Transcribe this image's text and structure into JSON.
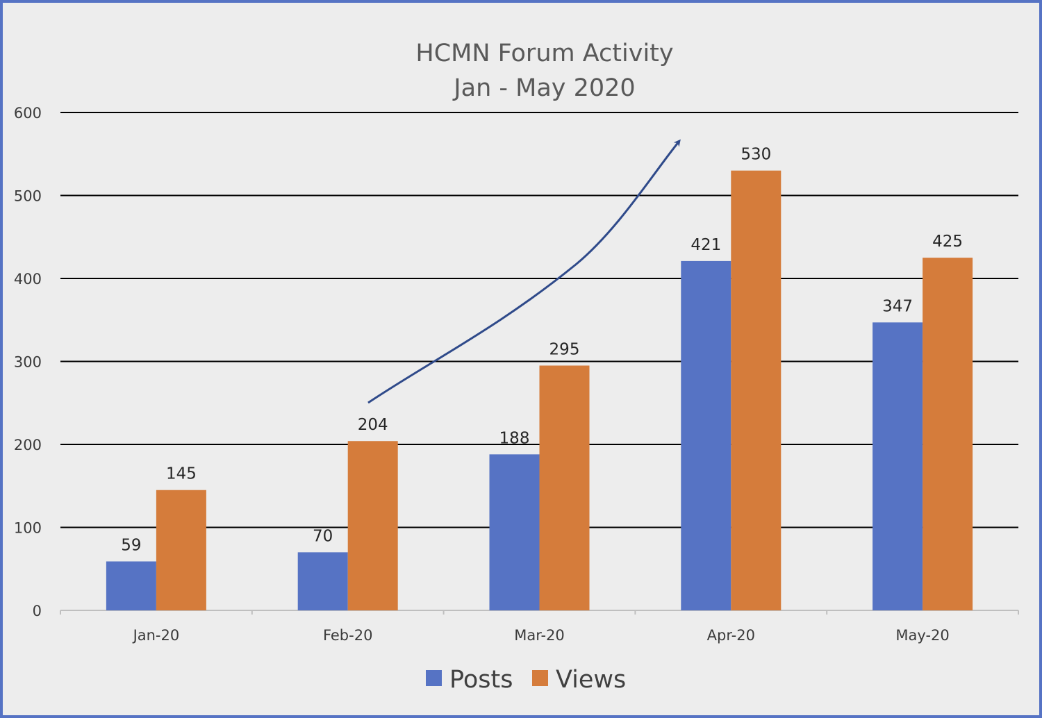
{
  "chart_data": {
    "type": "bar",
    "title": "HCMN Forum Activity",
    "subtitle": "Jan - May 2020",
    "categories": [
      "Jan-20",
      "Feb-20",
      "Mar-20",
      "Apr-20",
      "May-20"
    ],
    "series": [
      {
        "name": "Posts",
        "values": [
          59,
          70,
          188,
          421,
          347
        ],
        "color": "#5673c4"
      },
      {
        "name": "Views",
        "values": [
          145,
          204,
          295,
          530,
          425
        ],
        "color": "#d57c3b"
      }
    ],
    "yticks": [
      "0",
      "100",
      "200",
      "300",
      "400",
      "500",
      "600"
    ],
    "ylim": [
      0,
      600
    ],
    "xlabel": "",
    "ylabel": "",
    "grid": true,
    "legend_position": "bottom",
    "annotation": {
      "type": "trend-arrow",
      "color": "#2f4a8a"
    },
    "colors": {
      "frame": "#5673c4",
      "background": "#ededed",
      "gridline": "#000000"
    }
  }
}
